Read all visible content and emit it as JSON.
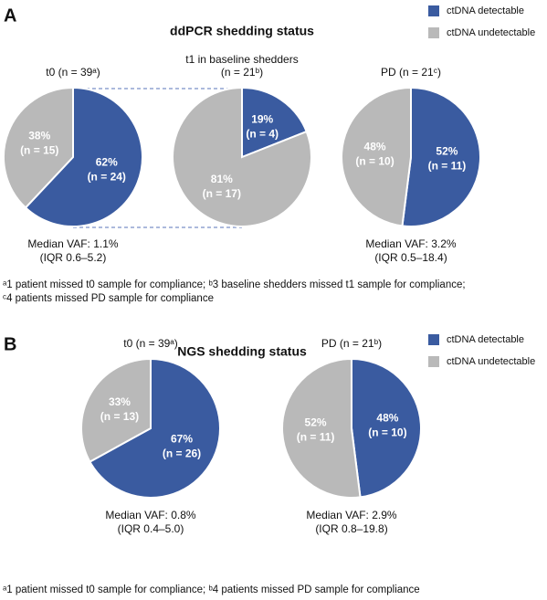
{
  "chart_data": [
    {
      "type": "pie",
      "title": [
        "t0 (n = 39ᵃ)"
      ],
      "categories": [
        "ctDNA detectable",
        "ctDNA undetectable"
      ],
      "colors": [
        "#3a5ba0",
        "#b9b9b9"
      ],
      "values": [
        62,
        38
      ],
      "value_labels": [
        "62%",
        "38%"
      ],
      "count_labels": [
        "(n = 24)",
        "(n = 15)"
      ],
      "annotations": [
        "Median VAF: 1.1%",
        "(IQR 0.6–5.2)"
      ]
    },
    {
      "type": "pie",
      "title": [
        "t1 in baseline shedders",
        "(n = 21ᵇ)"
      ],
      "categories": [
        "ctDNA detectable",
        "ctDNA undetectable"
      ],
      "colors": [
        "#3a5ba0",
        "#b9b9b9"
      ],
      "values": [
        19,
        81
      ],
      "value_labels": [
        "19%",
        "81%"
      ],
      "count_labels": [
        "(n = 4)",
        "(n = 17)"
      ],
      "annotations": []
    },
    {
      "type": "pie",
      "title": [
        "PD (n = 21ᶜ)"
      ],
      "categories": [
        "ctDNA detectable",
        "ctDNA undetectable"
      ],
      "colors": [
        "#3a5ba0",
        "#b9b9b9"
      ],
      "values": [
        52,
        48
      ],
      "value_labels": [
        "52%",
        "48%"
      ],
      "count_labels": [
        "(n = 11)",
        "(n = 10)"
      ],
      "annotations": [
        "Median VAF: 3.2%",
        "(IQR 0.5–18.4)"
      ]
    },
    {
      "type": "pie",
      "title": [
        "t0 (n = 39ᵃ)"
      ],
      "categories": [
        "ctDNA detectable",
        "ctDNA undetectable"
      ],
      "colors": [
        "#3a5ba0",
        "#b9b9b9"
      ],
      "values": [
        67,
        33
      ],
      "value_labels": [
        "67%",
        "33%"
      ],
      "count_labels": [
        "(n = 26)",
        "(n = 13)"
      ],
      "annotations": [
        "Median VAF: 0.8%",
        "(IQR 0.4–5.0)"
      ]
    },
    {
      "type": "pie",
      "title": [
        "PD (n = 21ᵇ)"
      ],
      "categories": [
        "ctDNA detectable",
        "ctDNA undetectable"
      ],
      "colors": [
        "#3a5ba0",
        "#b9b9b9"
      ],
      "values": [
        48,
        52
      ],
      "value_labels": [
        "48%",
        "52%"
      ],
      "count_labels": [
        "(n = 10)",
        "(n = 11)"
      ],
      "annotations": [
        "Median VAF: 2.9%",
        "(IQR 0.8–19.8)"
      ]
    }
  ],
  "panels": [
    {
      "label": "A",
      "title": "ddPCR shedding status",
      "footnotes": [
        "ᵃ1 patient missed t0 sample for compliance; ᵇ3 baseline shedders missed t1 sample for compliance;",
        "ᶜ4 patients missed PD sample for compliance"
      ]
    },
    {
      "label": "B",
      "title": "NGS shedding status",
      "footnotes": [
        "ᵃ1 patient missed t0 sample for compliance; ᵇ4 patients missed PD sample for compliance"
      ]
    }
  ]
}
